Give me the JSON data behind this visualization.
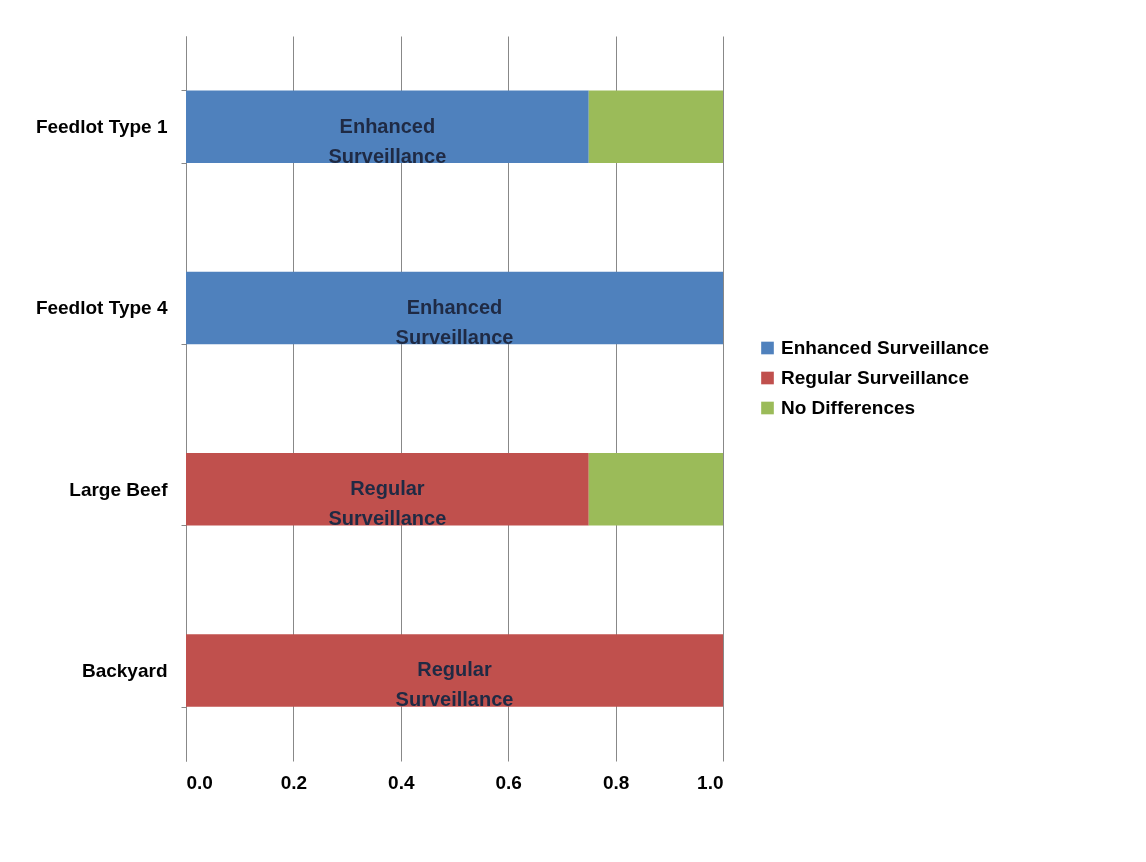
{
  "chart_data": {
    "type": "bar",
    "orientation": "horizontal",
    "stacked": true,
    "categories": [
      "Feedlot Type 1",
      "Feedlot Type 4",
      "Large Beef",
      "Backyard"
    ],
    "series": [
      {
        "name": "Enhanced Surveillance",
        "color": "#4f81bd",
        "values": [
          0.75,
          1.0,
          null,
          null
        ]
      },
      {
        "name": "Regular Surveillance",
        "color": "#c0504d",
        "values": [
          null,
          null,
          0.75,
          1.0
        ]
      },
      {
        "name": "No Differences",
        "color": "#9bbb59",
        "values": [
          0.25,
          null,
          0.25,
          null
        ]
      }
    ],
    "xlim": [
      0,
      1.0
    ],
    "xticks": [
      {
        "value": 0,
        "label": "0.0"
      },
      {
        "value": 0.2,
        "label": "0.2"
      },
      {
        "value": 0.4,
        "label": "0.4"
      },
      {
        "value": 0.6,
        "label": "0.6"
      },
      {
        "value": 0.8,
        "label": "0.8"
      },
      {
        "value": 1.0,
        "label": "1.0"
      }
    ],
    "grid": "x",
    "legend": "right",
    "annotations": [
      "Enhanced Surveillance",
      "Enhanced Surveillance",
      "Regular Surveillance",
      "Regular Surveillance"
    ]
  }
}
